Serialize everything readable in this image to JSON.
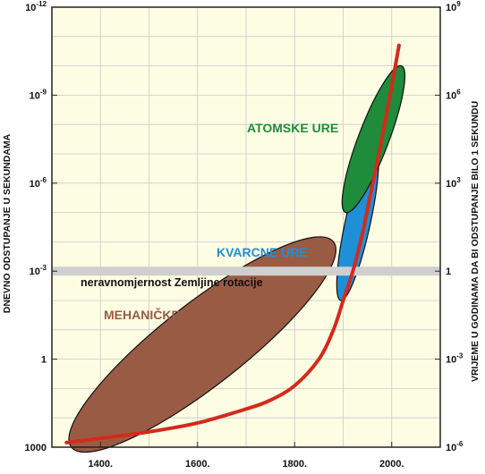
{
  "chart_data": {
    "type": "scatter",
    "title": "",
    "x_axis": {
      "range": [
        1300,
        2100
      ],
      "ticks": [
        1400,
        1600,
        1800,
        2000
      ],
      "tick_labels": [
        "1400.",
        "1600.",
        "1800.",
        "2000."
      ]
    },
    "y_left": {
      "label": "DNEVNO ODSTUPANJE U SEKUNDAMA",
      "scale": "log",
      "range_seconds_per_day": [
        1000,
        1e-12
      ],
      "ticks": [
        {
          "value": 1e-12,
          "base": "10",
          "exp": "-12"
        },
        {
          "value": 1e-09,
          "base": "10",
          "exp": "-9"
        },
        {
          "value": 1e-06,
          "base": "10",
          "exp": "-6"
        },
        {
          "value": 0.001,
          "base": "10",
          "exp": "-3"
        },
        {
          "value": 1,
          "base": "1",
          "exp": ""
        },
        {
          "value": 1000,
          "base": "1000",
          "exp": ""
        }
      ]
    },
    "y_right": {
      "label": "VRIJEME U GODINAMA DA BI ODSTUPANJE BILO 1 SEKUNDU",
      "scale": "log",
      "ticks": [
        {
          "value": 1000000000.0,
          "base": "10",
          "exp": "9"
        },
        {
          "value": 1000000.0,
          "base": "10",
          "exp": "6"
        },
        {
          "value": 1000.0,
          "base": "10",
          "exp": "3"
        },
        {
          "value": 1,
          "base": "1",
          "exp": ""
        },
        {
          "value": 0.001,
          "base": "10",
          "exp": "-3"
        },
        {
          "value": 1e-06,
          "base": "10",
          "exp": "-6"
        }
      ]
    },
    "grid": true,
    "regions": [
      {
        "label": "MEHANIČKE URE",
        "color": "#9a5b45",
        "text_color": "#9a5b45",
        "x_range": [
          1340,
          1880
        ],
        "error_range_seconds_per_day": [
          1000,
          0.0001
        ]
      },
      {
        "label": "KVARCNE URE",
        "color": "#1f8fd8",
        "text_color": "#1f8fd8",
        "x_range": [
          1895,
          1965
        ],
        "error_range_seconds_per_day": [
          0.01,
          5e-08
        ]
      },
      {
        "label": "ATOMSKE URE",
        "color": "#1e8c3a",
        "text_color": "#1e8c3a",
        "x_range": [
          1905,
          2020
        ],
        "error_range_seconds_per_day": [
          1e-05,
          1e-10
        ]
      }
    ],
    "band": {
      "label": "neravnomjernost Zemljine rotacije",
      "error_seconds_per_day": 0.001,
      "color": "#cfcfcf"
    },
    "trend": {
      "color": "#d42a1b",
      "x": [
        1330,
        1400,
        1500,
        1600,
        1700,
        1750,
        1800,
        1850,
        1880,
        1900,
        1920,
        1940,
        1955,
        1970,
        1985,
        2000,
        2015
      ],
      "y": [
        700,
        500,
        300,
        150,
        50,
        25,
        8,
        1,
        0.1,
        0.01,
        0.001,
        5e-05,
        3e-06,
        2e-07,
        1e-08,
        5e-10,
        2e-11
      ]
    }
  }
}
